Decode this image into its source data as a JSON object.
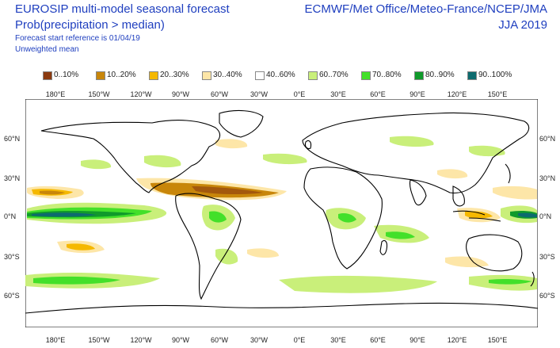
{
  "header": {
    "title_line1": "EUROSIP multi-model seasonal forecast",
    "title_line2": "Prob(precipitation > median)",
    "start_reference": "Forecast start reference is 01/04/19",
    "weighting": "Unweighted mean",
    "centres": "ECMWF/Met Office/Meteo-France/NCEP/JMA",
    "season": "JJA 2019"
  },
  "legend": [
    {
      "label": "0..10%",
      "color": "#8b3a0f"
    },
    {
      "label": "10..20%",
      "color": "#c8860a"
    },
    {
      "label": "20..30%",
      "color": "#f5b800"
    },
    {
      "label": "30..40%",
      "color": "#fde6a8"
    },
    {
      "label": "40..60%",
      "color": "#ffffff"
    },
    {
      "label": "60..70%",
      "color": "#c9ef7a"
    },
    {
      "label": "70..80%",
      "color": "#43e02a"
    },
    {
      "label": "80..90%",
      "color": "#109a2b"
    },
    {
      "label": "90..100%",
      "color": "#0d6b6e"
    }
  ],
  "longitude_labels": [
    "180°E",
    "150°W",
    "120°W",
    "90°W",
    "60°W",
    "30°W",
    "0°E",
    "30°E",
    "60°E",
    "90°E",
    "120°E",
    "150°E"
  ],
  "latitude_labels": [
    "60°N",
    "30°N",
    "0°N",
    "30°S",
    "60°S"
  ]
}
